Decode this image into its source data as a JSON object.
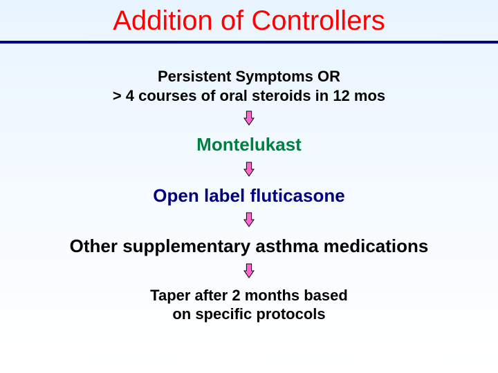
{
  "title": {
    "text": "Addition of Controllers",
    "color": "#ff0000",
    "fontsize": 40,
    "weight": "normal"
  },
  "rule_color": "#000080",
  "background_gradient": {
    "top": "#e8f4ff",
    "bottom": "#ffffff"
  },
  "arrow": {
    "fill": "#ff66cc",
    "stroke": "#000000",
    "width": 16,
    "height": 22
  },
  "steps": [
    {
      "lines": [
        "Persistent Symptoms OR",
        "> 4 courses of oral steroids in 12 mos"
      ],
      "color": "#000000",
      "fontsize": 22,
      "weight": "bold"
    },
    {
      "lines": [
        "Montelukast"
      ],
      "color": "#008040",
      "fontsize": 26,
      "weight": "bold"
    },
    {
      "lines": [
        "Open label fluticasone"
      ],
      "color": "#000080",
      "fontsize": 26,
      "weight": "bold"
    },
    {
      "lines": [
        "Other supplementary asthma medications"
      ],
      "color": "#000000",
      "fontsize": 26,
      "weight": "bold"
    },
    {
      "lines": [
        "Taper after 2 months based",
        "on specific protocols"
      ],
      "color": "#000000",
      "fontsize": 22,
      "weight": "bold"
    }
  ]
}
